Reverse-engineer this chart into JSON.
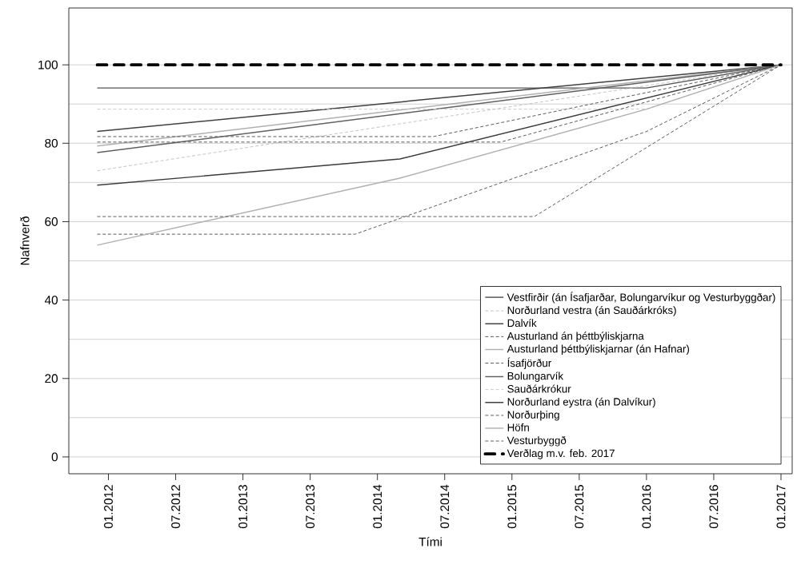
{
  "chart_data": {
    "type": "line",
    "xlabel": "Tími",
    "ylabel": "Nafnverð",
    "xlim": [
      "2011-09-15",
      "2017-02-01"
    ],
    "ylim": [
      -4.3,
      114.5
    ],
    "xticks": [
      {
        "value": "2012-01",
        "label": "01.2012"
      },
      {
        "value": "2012-07",
        "label": "07.2012"
      },
      {
        "value": "2013-01",
        "label": "01.2013"
      },
      {
        "value": "2013-07",
        "label": "07.2013"
      },
      {
        "value": "2014-01",
        "label": "01.2014"
      },
      {
        "value": "2014-07",
        "label": "07.2014"
      },
      {
        "value": "2015-01",
        "label": "01.2015"
      },
      {
        "value": "2015-07",
        "label": "07.2015"
      },
      {
        "value": "2016-01",
        "label": "01.2016"
      },
      {
        "value": "2016-07",
        "label": "07.2016"
      },
      {
        "value": "2017-01",
        "label": "01.2017"
      }
    ],
    "yticks": [
      0,
      20,
      40,
      60,
      80,
      100
    ],
    "grid": "y",
    "legend": "bottom right",
    "series": [
      {
        "name": "Vestfirðir (án Ísafjarðar, Bolungarvíkur og Vesturbyggðar)",
        "color": "#555555",
        "line_style": "solid",
        "x": [
          "2011-12",
          "2016-01",
          "2017-01"
        ],
        "values": [
          94.1,
          94.1,
          100
        ]
      },
      {
        "name": "Norðurland vestra (án Sauðárkróks)",
        "color": "#c0c0c0",
        "line_style": "dashed",
        "x": [
          "2011-12",
          "2017-01"
        ],
        "values": [
          73.0,
          100
        ]
      },
      {
        "name": "Dalvík",
        "color": "#404040",
        "line_style": "solid",
        "x": [
          "2011-12",
          "2017-01"
        ],
        "values": [
          83.0,
          100
        ]
      },
      {
        "name": "Austurland án þéttbýliskjarna",
        "color": "#505050",
        "line_style": "dashed",
        "x": [
          "2011-12",
          "2013-11",
          "2016-01",
          "2017-01"
        ],
        "values": [
          56.8,
          56.8,
          83.0,
          100
        ]
      },
      {
        "name": "Austurland þéttbýliskjarnar (án Hafnar)",
        "color": "#b0b0b0",
        "line_style": "solid",
        "x": [
          "2011-12",
          "2017-01"
        ],
        "values": [
          79.3,
          100
        ]
      },
      {
        "name": "Ísafjörður",
        "color": "#505050",
        "line_style": "dashed",
        "x": [
          "2011-12",
          "2014-06",
          "2017-01"
        ],
        "values": [
          81.7,
          81.7,
          100
        ]
      },
      {
        "name": "Bolungarvík",
        "color": "#606060",
        "line_style": "solid",
        "x": [
          "2011-12",
          "2017-01"
        ],
        "values": [
          77.6,
          100
        ]
      },
      {
        "name": "Sauðárkrókur",
        "color": "#c8c8c8",
        "line_style": "dashed",
        "x": [
          "2011-12",
          "2016-01",
          "2017-01"
        ],
        "values": [
          88.7,
          88.7,
          100
        ]
      },
      {
        "name": "Norðurland eystra (án Dalvíkur)",
        "color": "#3a3a3a",
        "line_style": "solid",
        "x": [
          "2011-12",
          "2014-03",
          "2017-01"
        ],
        "values": [
          69.3,
          76.0,
          100
        ]
      },
      {
        "name": "Norðurþing",
        "color": "#505050",
        "line_style": "dashed",
        "x": [
          "2011-12",
          "2014-12",
          "2017-01"
        ],
        "values": [
          80.3,
          80.3,
          100
        ]
      },
      {
        "name": "Höfn",
        "color": "#b0b0b0",
        "line_style": "solid",
        "x": [
          "2011-12",
          "2014-03",
          "2016-01",
          "2017-01"
        ],
        "values": [
          54.0,
          71.1,
          88.7,
          100
        ]
      },
      {
        "name": "Vesturbyggð",
        "color": "#505050",
        "line_style": "dashed",
        "x": [
          "2011-12",
          "2015-03",
          "2017-01"
        ],
        "values": [
          61.3,
          61.3,
          100
        ]
      }
    ],
    "ref_lines": [
      {
        "axis": "y",
        "value": 100,
        "label": "Verðlag m.v. feb. 2017",
        "color": "#000000",
        "line_style": "dashed"
      }
    ]
  }
}
